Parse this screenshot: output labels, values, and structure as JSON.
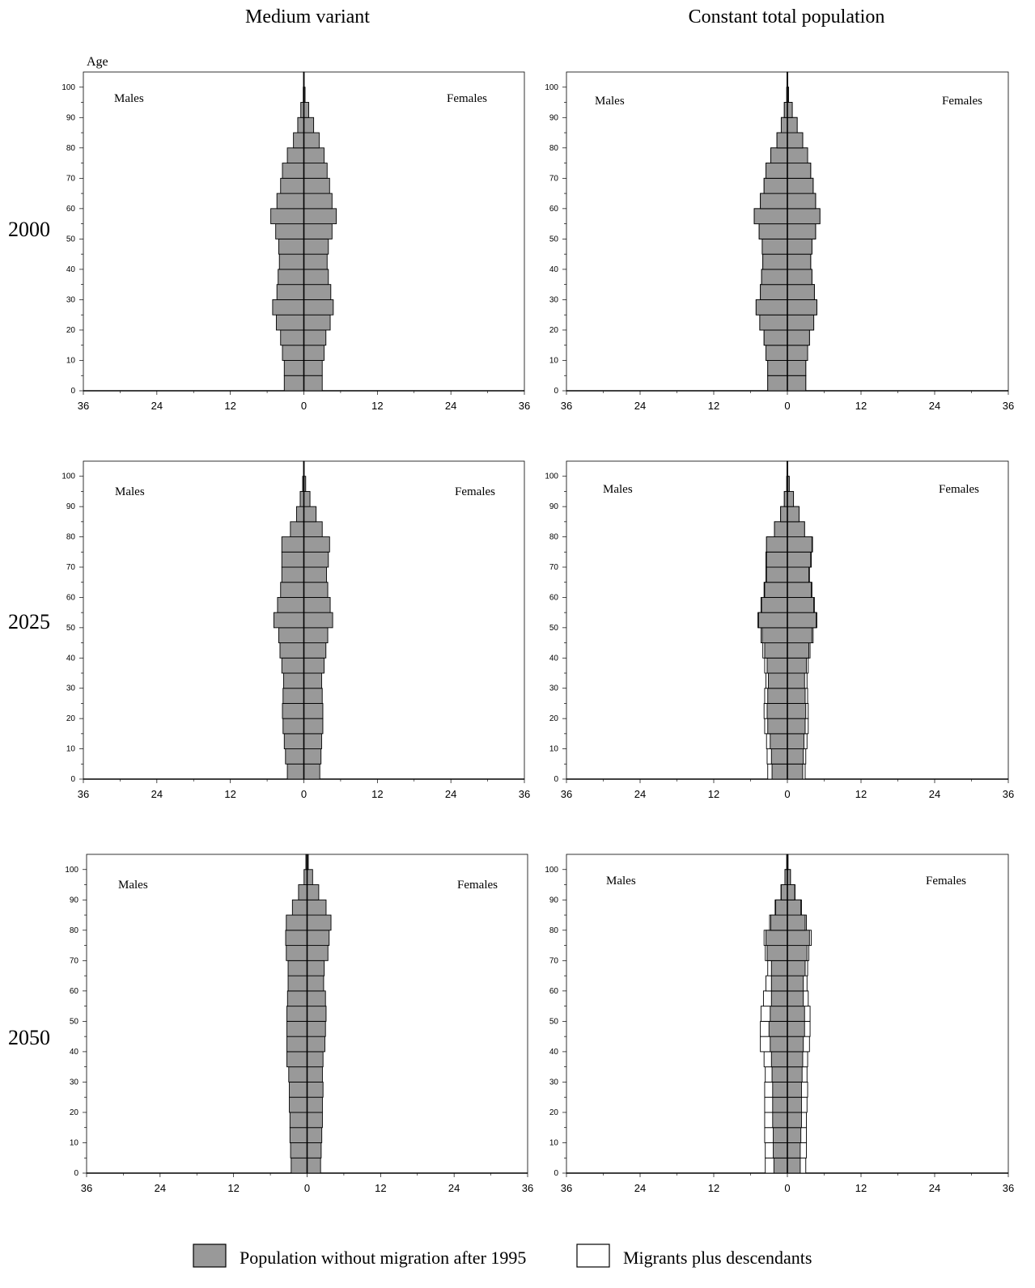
{
  "column_titles": [
    "Medium variant",
    "Constant total population"
  ],
  "row_labels": [
    "2000",
    "2025",
    "2050"
  ],
  "legend": {
    "base": "Population without migration after 1995",
    "migrants": "Migrants plus descendants"
  },
  "colors": {
    "base_fill": "#999999",
    "migrants_fill": "#ffffff",
    "outline": "#000000"
  },
  "chart_data": {
    "type": "bar",
    "subtype": "population-pyramid",
    "ylabel": "Age",
    "y_ticks": [
      "0",
      "10",
      "20",
      "30",
      "40",
      "50",
      "60",
      "70",
      "80",
      "90",
      "100"
    ],
    "x_ticks": [
      "36",
      "24",
      "12",
      "0",
      "12",
      "24",
      "36"
    ],
    "xlim": [
      -36,
      36
    ],
    "ylim": [
      0,
      105
    ],
    "left_label": "Males",
    "right_label": "Females",
    "age_groups": [
      "0-4",
      "5-9",
      "10-14",
      "15-19",
      "20-24",
      "25-29",
      "30-34",
      "35-39",
      "40-44",
      "45-49",
      "50-54",
      "55-59",
      "60-64",
      "65-69",
      "70-74",
      "75-79",
      "80-84",
      "85-89",
      "90-94",
      "95-99",
      "100+"
    ],
    "panels": [
      {
        "column": "Medium variant",
        "row": "2000",
        "males": [
          3.2,
          3.2,
          3.5,
          3.8,
          4.5,
          5.1,
          4.4,
          4.2,
          4.0,
          4.1,
          4.6,
          5.4,
          4.4,
          3.8,
          3.5,
          2.7,
          1.7,
          1.0,
          0.5,
          0.1,
          0.05
        ],
        "females": [
          3.0,
          3.0,
          3.3,
          3.6,
          4.3,
          4.8,
          4.4,
          4.0,
          3.8,
          4.0,
          4.6,
          5.3,
          4.6,
          4.2,
          3.8,
          3.3,
          2.5,
          1.6,
          0.8,
          0.2,
          0.05
        ],
        "migrants_males": null,
        "migrants_females": null
      },
      {
        "column": "Constant total population",
        "row": "2000",
        "males": [
          3.2,
          3.2,
          3.5,
          3.8,
          4.5,
          5.1,
          4.4,
          4.2,
          4.0,
          4.1,
          4.6,
          5.4,
          4.4,
          3.8,
          3.5,
          2.7,
          1.7,
          1.0,
          0.5,
          0.1,
          0.05
        ],
        "females": [
          3.0,
          3.0,
          3.3,
          3.6,
          4.3,
          4.8,
          4.4,
          4.0,
          3.8,
          4.0,
          4.6,
          5.3,
          4.6,
          4.2,
          3.8,
          3.3,
          2.5,
          1.6,
          0.8,
          0.2,
          0.05
        ],
        "migrants_males": [
          0,
          0,
          0,
          0,
          0,
          0,
          0,
          0,
          0,
          0,
          0,
          0,
          0,
          0,
          0,
          0,
          0,
          0,
          0,
          0,
          0
        ],
        "migrants_females": [
          0,
          0,
          0,
          0,
          0,
          0,
          0,
          0,
          0,
          0,
          0,
          0,
          0,
          0,
          0,
          0,
          0,
          0,
          0,
          0,
          0
        ]
      },
      {
        "column": "Medium variant",
        "row": "2025",
        "males": [
          2.7,
          3.0,
          3.2,
          3.4,
          3.5,
          3.4,
          3.3,
          3.6,
          3.9,
          4.1,
          4.9,
          4.3,
          3.8,
          3.6,
          3.6,
          3.6,
          2.2,
          1.2,
          0.6,
          0.2,
          0.05
        ],
        "females": [
          2.6,
          2.8,
          2.9,
          3.1,
          3.1,
          3.0,
          2.9,
          3.3,
          3.6,
          3.9,
          4.7,
          4.3,
          3.9,
          3.7,
          4.0,
          4.2,
          3.0,
          2.0,
          1.0,
          0.3,
          0.05
        ],
        "migrants_males": null,
        "migrants_females": null
      },
      {
        "column": "Constant total population",
        "row": "2025",
        "males": [
          2.5,
          2.6,
          2.8,
          3.2,
          3.3,
          3.2,
          3.1,
          3.3,
          3.7,
          4.1,
          4.7,
          4.2,
          3.7,
          3.4,
          3.4,
          3.4,
          2.1,
          1.1,
          0.5,
          0.1,
          0.05
        ],
        "females": [
          2.5,
          2.6,
          2.7,
          2.9,
          3.0,
          2.9,
          2.8,
          3.1,
          3.5,
          4.0,
          4.7,
          4.3,
          3.9,
          3.5,
          3.8,
          4.0,
          2.8,
          1.9,
          1.0,
          0.3,
          0.05
        ],
        "migrants_males": [
          0.7,
          0.7,
          0.6,
          0.5,
          0.5,
          0.5,
          0.4,
          0.4,
          0.3,
          0.2,
          0.1,
          0.1,
          0.1,
          0.1,
          0.1,
          0,
          0,
          0,
          0,
          0,
          0
        ],
        "migrants_females": [
          0.4,
          0.4,
          0.5,
          0.5,
          0.4,
          0.4,
          0.4,
          0.3,
          0.2,
          0.2,
          0.1,
          0.1,
          0.1,
          0.1,
          0.1,
          0.1,
          0,
          0,
          0,
          0,
          0
        ]
      },
      {
        "column": "Medium variant",
        "row": "2050",
        "males": [
          2.6,
          2.7,
          2.8,
          2.8,
          2.9,
          2.9,
          3.0,
          3.3,
          3.3,
          3.3,
          3.3,
          3.2,
          3.1,
          3.1,
          3.4,
          3.5,
          3.4,
          2.4,
          1.4,
          0.5,
          0.2
        ],
        "females": [
          2.2,
          2.3,
          2.4,
          2.5,
          2.5,
          2.6,
          2.5,
          2.6,
          2.9,
          3.0,
          3.1,
          3.0,
          2.7,
          2.8,
          3.4,
          3.6,
          3.9,
          3.1,
          1.9,
          0.9,
          0.2
        ],
        "migrants_males": null,
        "migrants_females": null
      },
      {
        "column": "Constant total population",
        "row": "2050",
        "males": [
          2.2,
          2.3,
          2.3,
          2.4,
          2.4,
          2.4,
          2.5,
          2.6,
          2.8,
          3.0,
          2.8,
          2.6,
          2.6,
          2.6,
          3.3,
          3.5,
          2.7,
          1.9,
          1.0,
          0.4,
          0.1
        ],
        "females": [
          2.1,
          2.1,
          2.2,
          2.3,
          2.3,
          2.3,
          2.4,
          2.5,
          2.6,
          2.8,
          2.8,
          2.6,
          2.6,
          2.9,
          3.2,
          3.6,
          2.9,
          2.2,
          1.2,
          0.5,
          0.1
        ],
        "migrants_males": [
          1.4,
          1.3,
          1.4,
          1.3,
          1.3,
          1.3,
          1.1,
          1.2,
          1.6,
          1.4,
          1.5,
          1.3,
          0.9,
          0.6,
          0.3,
          0.3,
          0.2,
          0.1,
          0.05,
          0,
          0
        ],
        "migrants_females": [
          0.9,
          1.0,
          0.9,
          0.8,
          0.9,
          1.0,
          0.8,
          0.8,
          1.0,
          0.9,
          0.9,
          0.8,
          0.6,
          0.4,
          0.3,
          0.3,
          0.2,
          0.1,
          0.05,
          0,
          0
        ]
      }
    ]
  }
}
